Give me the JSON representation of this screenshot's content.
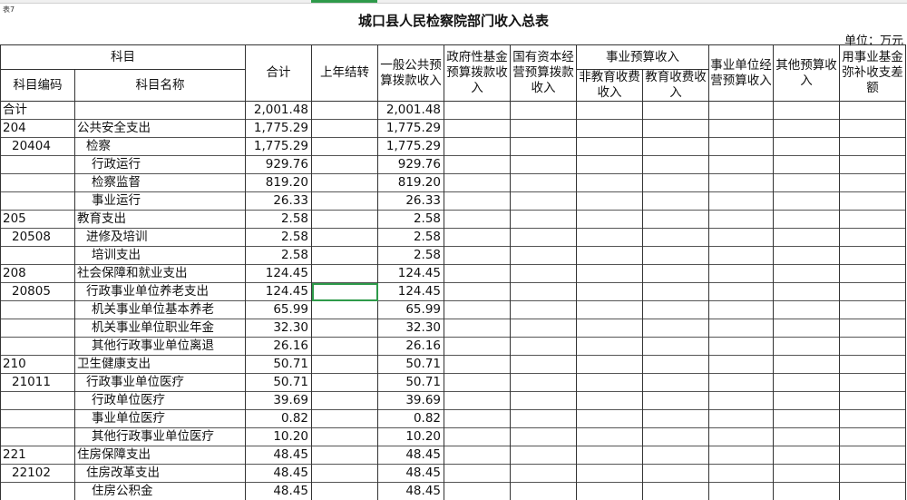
{
  "sheet_tag": "表7",
  "title": "城口县人民检察院部门收入总表",
  "unit": "单位：万元",
  "header": {
    "subject": "科目",
    "code": "科目编码",
    "name": "科目名称",
    "total": "合计",
    "carryover": "上年结转",
    "general_budget": "一般公共预算拨款收入",
    "gov_fund": "政府性基金预算拨款收入",
    "state_capital": "国有资本经营预算拨款收入",
    "public_service": "事业预算收入",
    "non_edu_fee": "非教育收费收入",
    "edu_fee": "教育收费收入",
    "unit_operation": "事业单位经营预算收入",
    "other": "其他预算收入",
    "fund_offset": "用事业基金弥补收支差额"
  },
  "rows": [
    {
      "code": "合计",
      "name": "",
      "total": "2,001.48",
      "general": "2,001.48",
      "level": 0
    },
    {
      "code": "204",
      "name": "公共安全支出",
      "total": "1,775.29",
      "general": "1,775.29",
      "level": 0
    },
    {
      "code": "20404",
      "name": "检察",
      "total": "1,775.29",
      "general": "1,775.29",
      "level": 1
    },
    {
      "code": "",
      "name": "行政运行",
      "total": "929.76",
      "general": "929.76",
      "level": 2
    },
    {
      "code": "",
      "name": "检察监督",
      "total": "819.20",
      "general": "819.20",
      "level": 2
    },
    {
      "code": "",
      "name": "事业运行",
      "total": "26.33",
      "general": "26.33",
      "level": 2
    },
    {
      "code": "205",
      "name": "教育支出",
      "total": "2.58",
      "general": "2.58",
      "level": 0
    },
    {
      "code": "20508",
      "name": "进修及培训",
      "total": "2.58",
      "general": "2.58",
      "level": 1
    },
    {
      "code": "",
      "name": "培训支出",
      "total": "2.58",
      "general": "2.58",
      "level": 2
    },
    {
      "code": "208",
      "name": "社会保障和就业支出",
      "total": "124.45",
      "general": "124.45",
      "level": 0
    },
    {
      "code": "20805",
      "name": "行政事业单位养老支出",
      "total": "124.45",
      "general": "124.45",
      "level": 1,
      "selected": true
    },
    {
      "code": "",
      "name": "机关事业单位基本养老",
      "total": "65.99",
      "general": "65.99",
      "level": 2
    },
    {
      "code": "",
      "name": "机关事业单位职业年金",
      "total": "32.30",
      "general": "32.30",
      "level": 2
    },
    {
      "code": "",
      "name": "其他行政事业单位离退",
      "total": "26.16",
      "general": "26.16",
      "level": 2
    },
    {
      "code": "210",
      "name": "卫生健康支出",
      "total": "50.71",
      "general": "50.71",
      "level": 0
    },
    {
      "code": "21011",
      "name": "行政事业单位医疗",
      "total": "50.71",
      "general": "50.71",
      "level": 1
    },
    {
      "code": "",
      "name": "行政单位医疗",
      "total": "39.69",
      "general": "39.69",
      "level": 2
    },
    {
      "code": "",
      "name": "事业单位医疗",
      "total": "0.82",
      "general": "0.82",
      "level": 2
    },
    {
      "code": "",
      "name": "其他行政事业单位医疗",
      "total": "10.20",
      "general": "10.20",
      "level": 2
    },
    {
      "code": "221",
      "name": "住房保障支出",
      "total": "48.45",
      "general": "48.45",
      "level": 0
    },
    {
      "code": "22102",
      "name": "住房改革支出",
      "total": "48.45",
      "general": "48.45",
      "level": 1
    },
    {
      "code": "",
      "name": "住房公积金",
      "total": "48.45",
      "general": "48.45",
      "level": 2
    }
  ],
  "colors": {
    "selection": "#2e9a4a",
    "grid": "#333333"
  }
}
